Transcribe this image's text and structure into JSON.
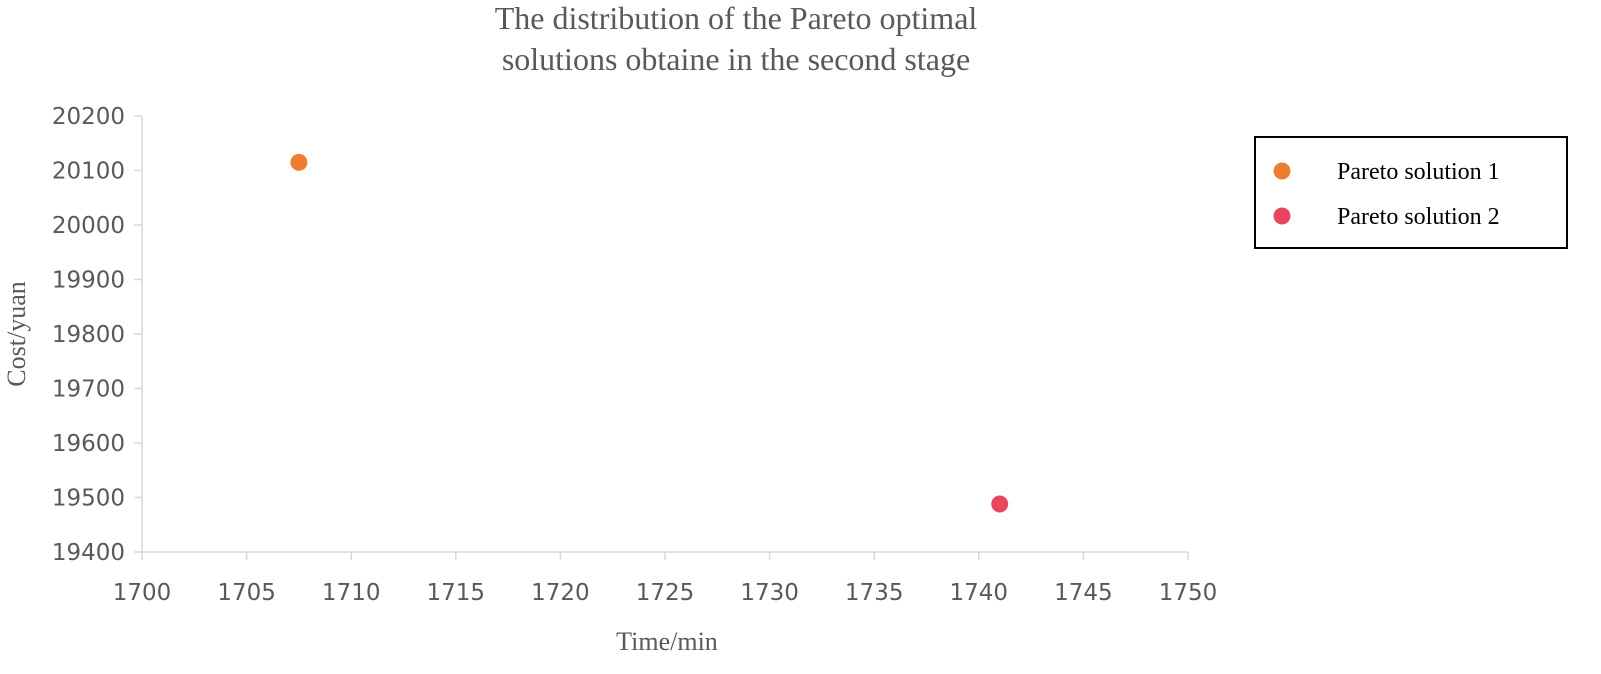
{
  "chart_data": {
    "type": "scatter",
    "title": "The distribution of the Pareto optimal solutions obtaine in the second stage",
    "title_lines": [
      "The distribution of the Pareto optimal",
      "solutions obtaine in the second stage"
    ],
    "xlabel": "Time/min",
    "ylabel": "Cost/yuan",
    "xlim": [
      1700,
      1750
    ],
    "ylim": [
      19400,
      20200
    ],
    "xticks": [
      1700,
      1705,
      1710,
      1715,
      1720,
      1725,
      1730,
      1735,
      1740,
      1745,
      1750
    ],
    "yticks": [
      19400,
      19500,
      19600,
      19700,
      19800,
      19900,
      20000,
      20100,
      20200
    ],
    "grid": false,
    "legend_position": "right",
    "series": [
      {
        "name": "Pareto solution 1",
        "color": "#ED7D31",
        "points": [
          {
            "x": 1707.5,
            "y": 20115
          }
        ]
      },
      {
        "name": "Pareto solution 2",
        "color": "#E8465E",
        "points": [
          {
            "x": 1741,
            "y": 19488
          }
        ]
      }
    ]
  },
  "colors": {
    "axis": "#D9D9D9",
    "text": "#595959",
    "legend_border": "#000000"
  }
}
